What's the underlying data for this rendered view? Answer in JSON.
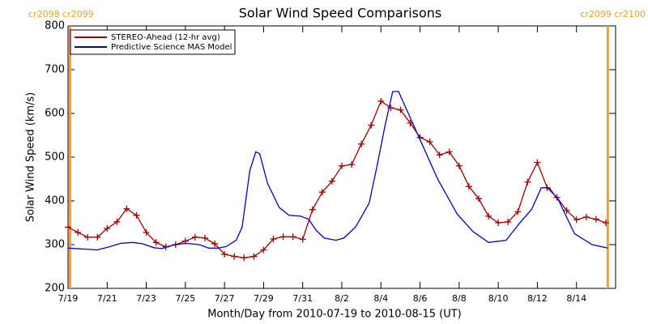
{
  "chart_data": {
    "type": "line",
    "title": "Solar Wind Speed Comparisons",
    "xlabel": "Month/Day from 2010-07-19 to 2010-08-15 (UT)",
    "ylabel": "Solar Wind Speed (km/s)",
    "xlim": [
      0,
      28
    ],
    "ylim": [
      200,
      800
    ],
    "xticks": [
      {
        "value": 0,
        "label": "7/19"
      },
      {
        "value": 2,
        "label": "7/21"
      },
      {
        "value": 4,
        "label": "7/23"
      },
      {
        "value": 6,
        "label": "7/25"
      },
      {
        "value": 8,
        "label": "7/27"
      },
      {
        "value": 10,
        "label": "7/29"
      },
      {
        "value": 12,
        "label": "7/31"
      },
      {
        "value": 14,
        "label": "8/2"
      },
      {
        "value": 16,
        "label": "8/4"
      },
      {
        "value": 18,
        "label": "8/6"
      },
      {
        "value": 20,
        "label": "8/8"
      },
      {
        "value": 22,
        "label": "8/10"
      },
      {
        "value": 24,
        "label": "8/12"
      },
      {
        "value": 26,
        "label": "8/14"
      }
    ],
    "yticks": [
      200,
      300,
      400,
      500,
      600,
      700,
      800
    ],
    "legend": "upper left",
    "rotation_boundaries": [
      {
        "x": 0.1,
        "label": "cr2098 cr2099",
        "color": "#f0a030"
      },
      {
        "x": 27.6,
        "label": "cr2099 cr2100",
        "color": "#f0a030"
      }
    ],
    "series": [
      {
        "name": "STEREO-Ahead (12-hr avg)",
        "color": "#a00000",
        "marker": "+",
        "x": [
          0,
          0.5,
          1,
          1.5,
          2,
          2.5,
          3,
          3.5,
          4,
          4.5,
          5,
          5.5,
          6,
          6.5,
          7,
          7.5,
          8,
          8.5,
          9,
          9.5,
          10,
          10.5,
          11,
          11.5,
          12,
          12.5,
          13,
          13.5,
          14,
          14.5,
          15,
          15.5,
          16,
          16.5,
          17,
          17.5,
          18,
          18.5,
          19,
          19.5,
          20,
          20.5,
          21,
          21.5,
          22,
          22.5,
          23,
          23.5,
          24,
          24.5,
          25,
          25.5,
          26,
          26.5,
          27,
          27.5
        ],
        "values": [
          340,
          328,
          317,
          317,
          337,
          352,
          382,
          367,
          328,
          305,
          295,
          300,
          308,
          317,
          315,
          302,
          278,
          273,
          270,
          273,
          288,
          313,
          318,
          318,
          312,
          380,
          420,
          445,
          480,
          483,
          530,
          573,
          628,
          613,
          608,
          578,
          545,
          535,
          505,
          512,
          480,
          433,
          405,
          365,
          350,
          352,
          375,
          443,
          488,
          430,
          408,
          378,
          357,
          363,
          358,
          350
        ]
      },
      {
        "name": "Predictive Science MAS Model",
        "color": "#0000c8",
        "x": [
          0,
          1.1,
          1.5,
          2.1,
          2.7,
          3.3,
          3.8,
          4.4,
          4.8,
          5.4,
          6,
          6.7,
          7.2,
          7.7,
          8.1,
          8.6,
          8.9,
          9.3,
          9.6,
          9.8,
          10.2,
          10.8,
          11.3,
          11.9,
          12.3,
          12.7,
          13.1,
          13.7,
          14.1,
          14.7,
          15.4,
          15.8,
          16.2,
          16.6,
          16.9,
          17.4,
          18.1,
          18.9,
          19.9,
          20.7,
          21.5,
          22.4,
          23.2,
          23.7,
          24.2,
          24.6,
          25.1,
          25.9,
          26.8,
          27.6
        ],
        "values": [
          292,
          289,
          288,
          295,
          303,
          305,
          302,
          293,
          291,
          299,
          303,
          300,
          292,
          292,
          296,
          310,
          340,
          470,
          512,
          508,
          440,
          385,
          367,
          365,
          358,
          332,
          315,
          310,
          315,
          340,
          395,
          480,
          570,
          650,
          650,
          600,
          530,
          450,
          370,
          330,
          305,
          310,
          355,
          380,
          430,
          430,
          400,
          325,
          300,
          292
        ]
      }
    ]
  }
}
